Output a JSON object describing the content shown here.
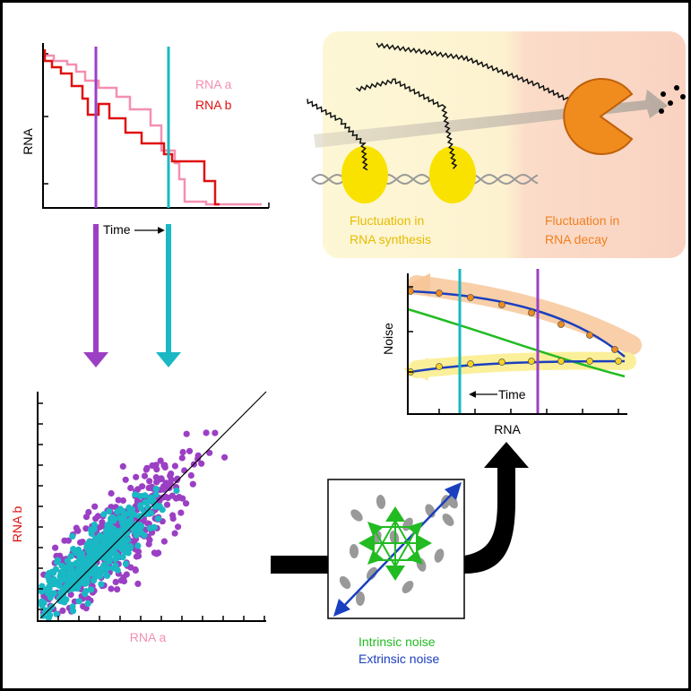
{
  "time_trace": {
    "legend": [
      "RNA a",
      "RNA b"
    ],
    "y_label": "RNA",
    "x_label": "Time"
  },
  "mechanism": {
    "synthesis_label": [
      "Fluctuation in",
      "RNA synthesis"
    ],
    "decay_label": [
      "Fluctuation in",
      "RNA decay"
    ]
  },
  "noise_plot": {
    "y_label": "Noise",
    "x_label": "RNA",
    "time_label": "Time"
  },
  "scatter_plot": {
    "y_label": "RNA b",
    "x_label": "RNA a"
  },
  "noise_legend": {
    "intrinsic": "Intrinsic noise",
    "extrinsic": "Extrinsic noise"
  }
}
